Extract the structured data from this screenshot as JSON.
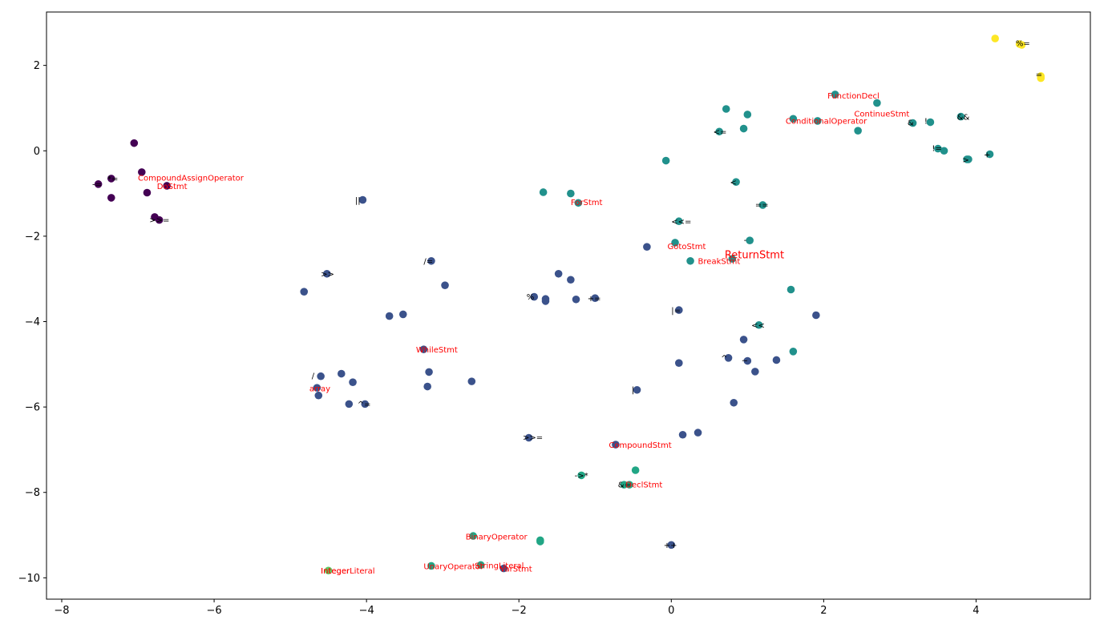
{
  "chart_data": {
    "type": "scatter",
    "title": "",
    "xlabel": "",
    "ylabel": "",
    "xlim": [
      -8.2,
      5.5
    ],
    "ylim": [
      -10.5,
      3.25
    ],
    "grid": false,
    "xticks": [
      -8,
      -6,
      -4,
      -2,
      0,
      2,
      4
    ],
    "yticks": [
      -10,
      -8,
      -6,
      -4,
      -2,
      0,
      2
    ],
    "xtick_labels": [
      "−8",
      "−6",
      "−4",
      "−2",
      "0",
      "2",
      "4"
    ],
    "ytick_labels": [
      "−10",
      "−8",
      "−6",
      "−4",
      "−2",
      "0",
      "2"
    ],
    "colors": {
      "c0": "#440154",
      "c1": "#3b528b",
      "c2": "#21918c",
      "c3": "#21a685",
      "c4": "#5ec962",
      "c5": "#fde725",
      "label_black": "#000000",
      "label_red": "#ff0000"
    },
    "points": [
      {
        "x": -7.05,
        "y": 0.18,
        "c": "c0"
      },
      {
        "x": -6.95,
        "y": -0.5,
        "c": "c0"
      },
      {
        "x": -7.35,
        "y": -0.65,
        "c": "c0"
      },
      {
        "x": -7.52,
        "y": -0.78,
        "c": "c0"
      },
      {
        "x": -6.62,
        "y": -0.82,
        "c": "c0"
      },
      {
        "x": -6.88,
        "y": -0.98,
        "c": "c0"
      },
      {
        "x": -7.35,
        "y": -1.1,
        "c": "c0"
      },
      {
        "x": -6.78,
        "y": -1.55,
        "c": "c0"
      },
      {
        "x": -6.72,
        "y": -1.62,
        "c": "c0"
      },
      {
        "x": -4.05,
        "y": -1.15,
        "c": "c1"
      },
      {
        "x": -4.52,
        "y": -2.88,
        "c": "c1"
      },
      {
        "x": -4.82,
        "y": -3.3,
        "c": "c1"
      },
      {
        "x": -3.15,
        "y": -2.58,
        "c": "c1"
      },
      {
        "x": -2.97,
        "y": -3.15,
        "c": "c1"
      },
      {
        "x": -3.7,
        "y": -3.87,
        "c": "c1"
      },
      {
        "x": -3.52,
        "y": -3.83,
        "c": "c1"
      },
      {
        "x": -1.48,
        "y": -2.88,
        "c": "c1"
      },
      {
        "x": -1.32,
        "y": -3.02,
        "c": "c1"
      },
      {
        "x": -1.8,
        "y": -3.42,
        "c": "c1"
      },
      {
        "x": -1.65,
        "y": -3.47,
        "c": "c1"
      },
      {
        "x": -1.65,
        "y": -3.52,
        "c": "c1"
      },
      {
        "x": -1.25,
        "y": -3.48,
        "c": "c1"
      },
      {
        "x": -1.0,
        "y": -3.45,
        "c": "c1"
      },
      {
        "x": -0.32,
        "y": -2.25,
        "c": "c1"
      },
      {
        "x": 0.1,
        "y": -3.73,
        "c": "c1"
      },
      {
        "x": -3.25,
        "y": -4.65,
        "c": "c1"
      },
      {
        "x": -3.18,
        "y": -5.18,
        "c": "c1"
      },
      {
        "x": -3.2,
        "y": -5.52,
        "c": "c1"
      },
      {
        "x": -2.62,
        "y": -5.4,
        "c": "c1"
      },
      {
        "x": -4.6,
        "y": -5.28,
        "c": "c1"
      },
      {
        "x": -4.65,
        "y": -5.55,
        "c": "c1"
      },
      {
        "x": -4.63,
        "y": -5.73,
        "c": "c1"
      },
      {
        "x": -4.33,
        "y": -5.22,
        "c": "c1"
      },
      {
        "x": -4.18,
        "y": -5.42,
        "c": "c1"
      },
      {
        "x": -4.23,
        "y": -5.93,
        "c": "c1"
      },
      {
        "x": -4.02,
        "y": -5.93,
        "c": "c1"
      },
      {
        "x": -0.45,
        "y": -5.6,
        "c": "c1"
      },
      {
        "x": 0.1,
        "y": -4.97,
        "c": "c1"
      },
      {
        "x": 0.75,
        "y": -4.85,
        "c": "c1"
      },
      {
        "x": 0.95,
        "y": -4.42,
        "c": "c1"
      },
      {
        "x": 1.0,
        "y": -4.92,
        "c": "c1"
      },
      {
        "x": 1.1,
        "y": -5.17,
        "c": "c1"
      },
      {
        "x": 1.38,
        "y": -4.9,
        "c": "c1"
      },
      {
        "x": 1.9,
        "y": -3.85,
        "c": "c1"
      },
      {
        "x": 0.82,
        "y": -5.9,
        "c": "c1"
      },
      {
        "x": 0.15,
        "y": -6.65,
        "c": "c1"
      },
      {
        "x": 0.35,
        "y": -6.6,
        "c": "c1"
      },
      {
        "x": -0.73,
        "y": -6.88,
        "c": "c1"
      },
      {
        "x": -1.87,
        "y": -6.72,
        "c": "c1"
      },
      {
        "x": 0.0,
        "y": -9.23,
        "c": "c1"
      },
      {
        "x": -2.2,
        "y": -9.78,
        "c": "c1"
      },
      {
        "x": 0.72,
        "y": 0.98,
        "c": "c2"
      },
      {
        "x": 1.0,
        "y": 0.85,
        "c": "c2"
      },
      {
        "x": 0.95,
        "y": 0.52,
        "c": "c2"
      },
      {
        "x": 0.63,
        "y": 0.45,
        "c": "c2"
      },
      {
        "x": -0.07,
        "y": -0.23,
        "c": "c2"
      },
      {
        "x": 1.6,
        "y": 0.75,
        "c": "c2"
      },
      {
        "x": 1.92,
        "y": 0.7,
        "c": "c2"
      },
      {
        "x": 2.15,
        "y": 1.32,
        "c": "c2"
      },
      {
        "x": 2.7,
        "y": 1.12,
        "c": "c2"
      },
      {
        "x": 2.45,
        "y": 0.47,
        "c": "c2"
      },
      {
        "x": 3.17,
        "y": 0.65,
        "c": "c2"
      },
      {
        "x": 3.4,
        "y": 0.67,
        "c": "c2"
      },
      {
        "x": 3.8,
        "y": 0.8,
        "c": "c2"
      },
      {
        "x": 3.5,
        "y": 0.05,
        "c": "c2"
      },
      {
        "x": 3.58,
        "y": 0.0,
        "c": "c2"
      },
      {
        "x": 3.88,
        "y": -0.2,
        "c": "c2"
      },
      {
        "x": 3.9,
        "y": -0.2,
        "c": "c2"
      },
      {
        "x": 4.18,
        "y": -0.08,
        "c": "c2"
      },
      {
        "x": 0.85,
        "y": -0.73,
        "c": "c2"
      },
      {
        "x": -1.68,
        "y": -0.97,
        "c": "c2"
      },
      {
        "x": -1.32,
        "y": -1.0,
        "c": "c2"
      },
      {
        "x": -1.22,
        "y": -1.22,
        "c": "c2"
      },
      {
        "x": 1.2,
        "y": -1.27,
        "c": "c2"
      },
      {
        "x": 0.1,
        "y": -1.65,
        "c": "c2"
      },
      {
        "x": 0.05,
        "y": -2.15,
        "c": "c2"
      },
      {
        "x": 1.03,
        "y": -2.1,
        "c": "c2"
      },
      {
        "x": 0.25,
        "y": -2.58,
        "c": "c2"
      },
      {
        "x": 0.8,
        "y": -2.53,
        "c": "c2"
      },
      {
        "x": 1.57,
        "y": -3.25,
        "c": "c2"
      },
      {
        "x": 1.15,
        "y": -4.08,
        "c": "c2"
      },
      {
        "x": 1.6,
        "y": -4.7,
        "c": "c2"
      },
      {
        "x": -0.47,
        "y": -7.48,
        "c": "c3"
      },
      {
        "x": -1.18,
        "y": -7.6,
        "c": "c3"
      },
      {
        "x": -0.62,
        "y": -7.82,
        "c": "c3"
      },
      {
        "x": -0.55,
        "y": -7.82,
        "c": "c3"
      },
      {
        "x": -2.6,
        "y": -9.02,
        "c": "c3"
      },
      {
        "x": -1.72,
        "y": -9.12,
        "c": "c3"
      },
      {
        "x": -1.72,
        "y": -9.15,
        "c": "c3"
      },
      {
        "x": -3.15,
        "y": -9.72,
        "c": "c3"
      },
      {
        "x": -2.5,
        "y": -9.7,
        "c": "c3"
      },
      {
        "x": -4.5,
        "y": -9.83,
        "c": "c4"
      },
      {
        "x": 4.25,
        "y": 2.63,
        "c": "c5"
      },
      {
        "x": 4.57,
        "y": 2.5,
        "c": "c5"
      },
      {
        "x": 4.6,
        "y": 2.48,
        "c": "c5"
      },
      {
        "x": 4.85,
        "y": 1.75,
        "c": "c5"
      },
      {
        "x": 4.85,
        "y": 1.7,
        "c": "c5"
      }
    ],
    "labels": [
      {
        "text": "%=",
        "x": 4.52,
        "y": 2.45,
        "color": "label_black",
        "size": 10
      },
      {
        "text": "=",
        "x": 4.78,
        "y": 1.72,
        "color": "label_black",
        "size": 10
      },
      {
        "text": "FunctionDecl",
        "x": 2.05,
        "y": 1.22,
        "color": "label_red",
        "size": 10
      },
      {
        "text": "ContinueStmt",
        "x": 2.4,
        "y": 0.8,
        "color": "label_red",
        "size": 10
      },
      {
        "text": "ConditionalOperator",
        "x": 1.5,
        "y": 0.63,
        "color": "label_red",
        "size": 10
      },
      {
        "text": "&&",
        "x": 3.75,
        "y": 0.73,
        "color": "label_black",
        "size": 10
      },
      {
        "text": "&",
        "x": 3.1,
        "y": 0.6,
        "color": "label_black",
        "size": 10
      },
      {
        "text": "!",
        "x": 3.32,
        "y": 0.63,
        "color": "label_black",
        "size": 10
      },
      {
        "text": "<=",
        "x": 0.55,
        "y": 0.38,
        "color": "label_black",
        "size": 10
      },
      {
        "text": "!=",
        "x": 3.42,
        "y": 0.0,
        "color": "label_black",
        "size": 10
      },
      {
        "text": ">",
        "x": 3.82,
        "y": -0.28,
        "color": "label_black",
        "size": 10
      },
      {
        "text": "+",
        "x": 4.1,
        "y": -0.15,
        "color": "label_black",
        "size": 10
      },
      {
        "text": "*=",
        "x": -7.4,
        "y": -0.72,
        "color": "label_black",
        "size": 10
      },
      {
        "text": "-=",
        "x": -7.6,
        "y": -0.85,
        "color": "label_black",
        "size": 10
      },
      {
        "text": "CompoundAssignOperator",
        "x": -7.0,
        "y": -0.7,
        "color": "label_red",
        "size": 10
      },
      {
        "text": "DoStmt",
        "x": -6.75,
        "y": -0.9,
        "color": "label_red",
        "size": 10
      },
      {
        "text": ">>=",
        "x": -6.85,
        "y": -1.68,
        "color": "label_black",
        "size": 10
      },
      {
        "text": "||",
        "x": -4.15,
        "y": -1.22,
        "color": "label_black",
        "size": 10
      },
      {
        "text": "ForStmt",
        "x": -1.32,
        "y": -1.27,
        "color": "label_red",
        "size": 10
      },
      {
        "text": "<",
        "x": 0.77,
        "y": -0.8,
        "color": "label_black",
        "size": 10
      },
      {
        "text": "==",
        "x": 1.1,
        "y": -1.33,
        "color": "label_black",
        "size": 10
      },
      {
        "text": "<<=",
        "x": 0.0,
        "y": -1.72,
        "color": "label_black",
        "size": 10
      },
      {
        "text": "-",
        "x": 0.95,
        "y": -2.15,
        "color": "label_black",
        "size": 10
      },
      {
        "text": "GotoStmt",
        "x": -0.05,
        "y": -2.3,
        "color": "label_red",
        "size": 10
      },
      {
        "text": "BreakStmt",
        "x": 0.35,
        "y": -2.65,
        "color": "label_red",
        "size": 10
      },
      {
        "text": "ReturnStmt",
        "x": 0.7,
        "y": -2.52,
        "color": "label_red",
        "size": 13
      },
      {
        "text": ">>",
        "x": -4.6,
        "y": -2.95,
        "color": "label_black",
        "size": 10
      },
      {
        "text": "/=",
        "x": -3.25,
        "y": -2.65,
        "color": "label_black",
        "size": 10
      },
      {
        "text": "%",
        "x": -1.9,
        "y": -3.48,
        "color": "label_black",
        "size": 10
      },
      {
        "text": "+=",
        "x": -1.1,
        "y": -3.52,
        "color": "label_black",
        "size": 10
      },
      {
        "text": "|=",
        "x": 0.0,
        "y": -3.8,
        "color": "label_black",
        "size": 10
      },
      {
        "text": "<<",
        "x": 1.05,
        "y": -4.15,
        "color": "label_black",
        "size": 10
      },
      {
        "text": "WhileStmt",
        "x": -3.35,
        "y": -4.72,
        "color": "label_red",
        "size": 10
      },
      {
        "text": "^",
        "x": 0.65,
        "y": -4.92,
        "color": "label_black",
        "size": 10
      },
      {
        "text": "~",
        "x": 0.92,
        "y": -4.98,
        "color": "label_black",
        "size": 10
      },
      {
        "text": "/",
        "x": -4.72,
        "y": -5.33,
        "color": "label_black",
        "size": 10
      },
      {
        "text": "array",
        "x": -4.75,
        "y": -5.63,
        "color": "label_red",
        "size": 10
      },
      {
        "text": "^=",
        "x": -4.12,
        "y": -6.0,
        "color": "label_black",
        "size": 10
      },
      {
        "text": "|",
        "x": -0.52,
        "y": -5.66,
        "color": "label_black",
        "size": 10
      },
      {
        "text": ">>=",
        "x": -1.95,
        "y": -6.78,
        "color": "label_black",
        "size": 10
      },
      {
        "text": "CompoundStmt",
        "x": -0.82,
        "y": -6.95,
        "color": "label_red",
        "size": 10
      },
      {
        "text": "->*",
        "x": -1.27,
        "y": -7.67,
        "color": "label_black",
        "size": 10
      },
      {
        "text": "&=",
        "x": -0.7,
        "y": -7.88,
        "color": "label_black",
        "size": 10
      },
      {
        "text": "DeclStmt",
        "x": -0.6,
        "y": -7.88,
        "color": "label_red",
        "size": 10
      },
      {
        "text": "BinaryOperator",
        "x": -2.7,
        "y": -9.1,
        "color": "label_red",
        "size": 10
      },
      {
        "text": "++",
        "x": -0.1,
        "y": -9.3,
        "color": "label_black",
        "size": 10
      },
      {
        "text": "Integer",
        "x": -4.6,
        "y": -9.9,
        "color": "label_red",
        "size": 10
      },
      {
        "text": "IntegerLiteral",
        "x": -4.6,
        "y": -9.9,
        "color": "label_red",
        "size": 10
      },
      {
        "text": "UnaryOperator",
        "x": -3.25,
        "y": -9.8,
        "color": "label_red",
        "size": 10
      },
      {
        "text": "StringLiteral",
        "x": -2.58,
        "y": -9.78,
        "color": "label_red",
        "size": 10
      },
      {
        "text": "VarStmt",
        "x": -2.25,
        "y": -9.85,
        "color": "label_red",
        "size": 10
      }
    ]
  }
}
